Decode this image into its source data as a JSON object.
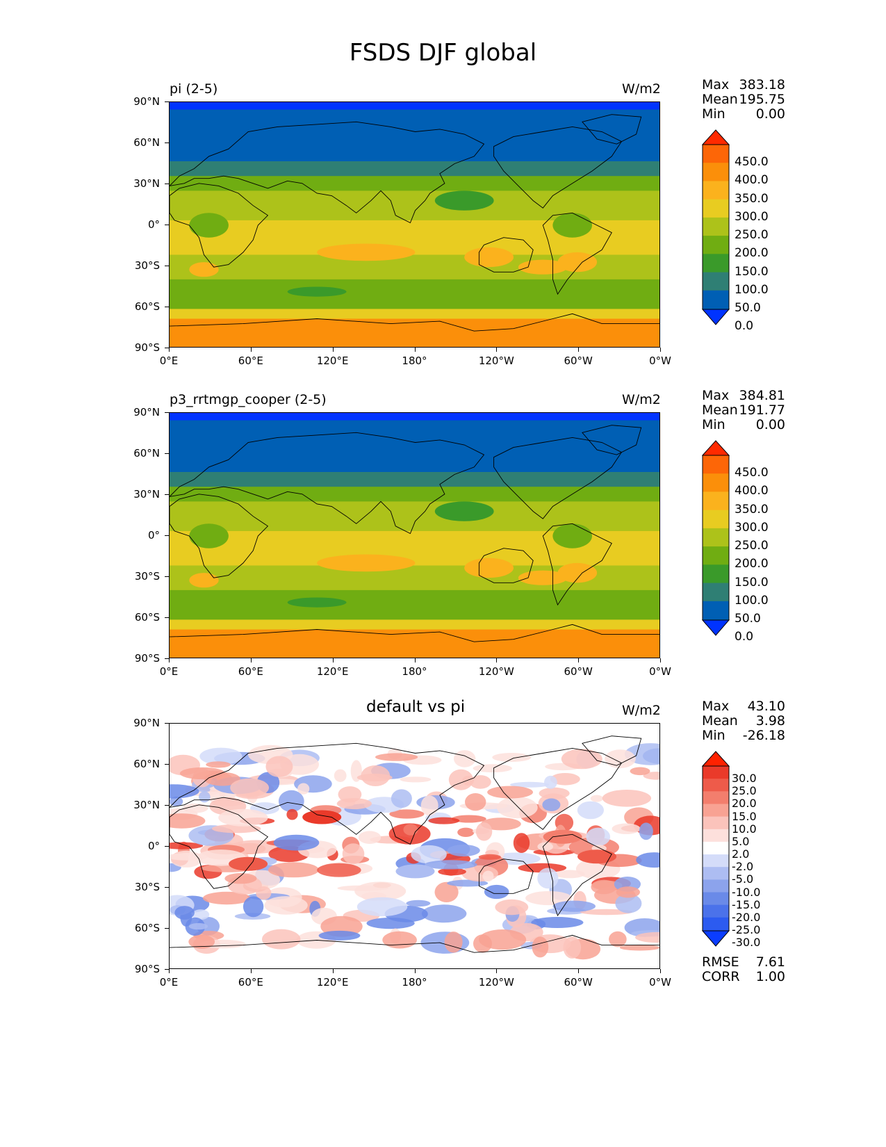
{
  "figure_title": "FSDS DJF global",
  "axes": {
    "yticks": [
      "90°N",
      "60°N",
      "30°N",
      "0°",
      "30°S",
      "60°S",
      "90°S"
    ],
    "xticks": [
      "0°E",
      "60°E",
      "120°E",
      "180°",
      "120°W",
      "60°W",
      "0°W"
    ]
  },
  "panels": [
    {
      "label": "pi (2-5)",
      "units": "W/m2",
      "stats": [
        {
          "key": "Max",
          "value": "383.18"
        },
        {
          "key": "Mean",
          "value": "195.75"
        },
        {
          "key": "Min",
          "value": "0.00"
        }
      ],
      "colorbar_labels": [
        "450.0",
        "400.0",
        "350.0",
        "300.0",
        "250.0",
        "200.0",
        "150.0",
        "100.0",
        "50.0",
        "0.0"
      ]
    },
    {
      "label": "p3_rrtmgp_cooper (2-5)",
      "units": "W/m2",
      "stats": [
        {
          "key": "Max",
          "value": "384.81"
        },
        {
          "key": "Mean",
          "value": "191.77"
        },
        {
          "key": "Min",
          "value": "0.00"
        }
      ],
      "colorbar_labels": [
        "450.0",
        "400.0",
        "350.0",
        "300.0",
        "250.0",
        "200.0",
        "150.0",
        "100.0",
        "50.0",
        "0.0"
      ]
    },
    {
      "label": "default vs pi",
      "units": "W/m2",
      "stats": [
        {
          "key": "Max",
          "value": "43.10"
        },
        {
          "key": "Mean",
          "value": "3.98"
        },
        {
          "key": "Min",
          "value": "-26.18"
        }
      ],
      "colorbar_labels": [
        "30.0",
        "25.0",
        "20.0",
        "15.0",
        "10.0",
        "5.0",
        "2.0",
        "-2.0",
        "-5.0",
        "-10.0",
        "-15.0",
        "-20.0",
        "-25.0",
        "-30.0"
      ],
      "footer_stats": [
        {
          "key": "RMSE",
          "value": "7.61"
        },
        {
          "key": "CORR",
          "value": "1.00"
        }
      ]
    }
  ],
  "colors": {
    "abs_scale": [
      "#0033ff",
      "#005fb4",
      "#2f7f74",
      "#3a9a2a",
      "#70ad12",
      "#adc21a",
      "#e8cc21",
      "#fbb21d",
      "#fb8f0a",
      "#fd6607",
      "#ff2a00"
    ],
    "diff_scale": [
      "#0b3dff",
      "#2c5bf0",
      "#4b72ea",
      "#6a8ae8",
      "#8ca3ec",
      "#adbdf2",
      "#d4dcf9",
      "#ffffff",
      "#fde0dc",
      "#fbc3bb",
      "#f8a293",
      "#f37e6d",
      "#ee5b4a",
      "#ea3a2a",
      "#ff2200"
    ]
  }
}
